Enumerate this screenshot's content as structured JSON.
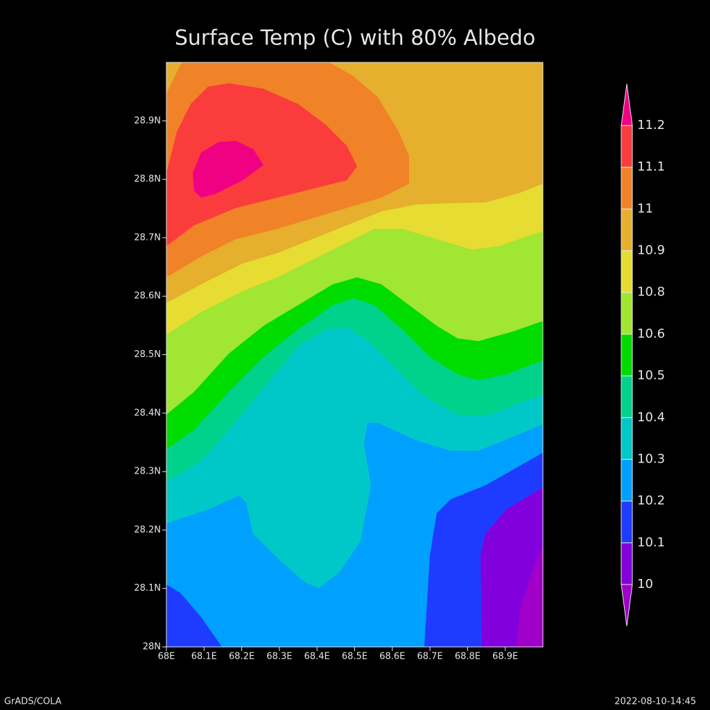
{
  "chart_data": {
    "type": "contour",
    "title": "Surface Temp (C) with 80% Albedo",
    "xlim": [
      68,
      69
    ],
    "ylim": [
      28,
      29
    ],
    "xticks": [
      {
        "value": 68,
        "label": "68E"
      },
      {
        "value": 68.1,
        "label": "68.1E"
      },
      {
        "value": 68.2,
        "label": "68.2E"
      },
      {
        "value": 68.3,
        "label": "68.3E"
      },
      {
        "value": 68.4,
        "label": "68.4E"
      },
      {
        "value": 68.5,
        "label": "68.5E"
      },
      {
        "value": 68.6,
        "label": "68.6E"
      },
      {
        "value": 68.7,
        "label": "68.7E"
      },
      {
        "value": 68.8,
        "label": "68.8E"
      },
      {
        "value": 68.9,
        "label": "68.9E"
      }
    ],
    "yticks": [
      {
        "value": 28,
        "label": "28N"
      },
      {
        "value": 28.1,
        "label": "28.1N"
      },
      {
        "value": 28.2,
        "label": "28.2N"
      },
      {
        "value": 28.3,
        "label": "28.3N"
      },
      {
        "value": 28.4,
        "label": "28.4N"
      },
      {
        "value": 28.5,
        "label": "28.5N"
      },
      {
        "value": 28.6,
        "label": "28.6N"
      },
      {
        "value": 28.7,
        "label": "28.7N"
      },
      {
        "value": 28.8,
        "label": "28.8N"
      },
      {
        "value": 28.9,
        "label": "28.9N"
      }
    ],
    "levels": [
      10,
      10.1,
      10.2,
      10.3,
      10.4,
      10.5,
      10.6,
      10.8,
      10.9,
      11,
      11.1,
      11.2
    ],
    "colors": [
      "#a000c8",
      "#8200dc",
      "#1e3cff",
      "#00a0ff",
      "#00c8c8",
      "#00d28c",
      "#00dc00",
      "#a0e632",
      "#e6dc32",
      "#e6af2d",
      "#f08228",
      "#fa3c3c",
      "#f00082"
    ],
    "footer_left": "GrADS/COLA",
    "footer_right": "2022-08-10-14:45"
  }
}
